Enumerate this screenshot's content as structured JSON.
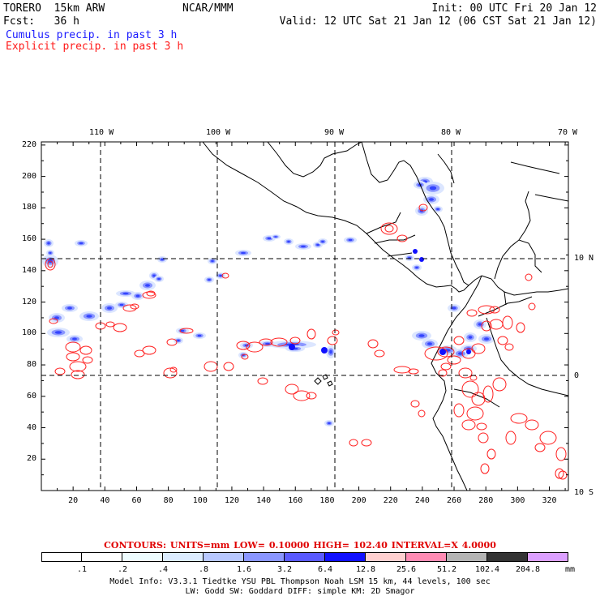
{
  "header": {
    "model": "TORERO  15km ARW",
    "forecast": "Fcst:   36 h",
    "org": "NCAR/MMM",
    "init": "Init: 00 UTC Fri 20 Jan 12",
    "valid": "Valid: 12 UTC Sat 21 Jan 12 (06 CST Sat 21 Jan 12)",
    "cumulus": "Cumulus precip. in past 3 h",
    "explicit": "Explicit precip. in past 3 h"
  },
  "map": {
    "lon_labels": [
      "110 W",
      "100 W",
      "90 W",
      "80 W",
      "70 W"
    ],
    "lat_labels": [
      "10 N",
      "0",
      "10 S"
    ],
    "x_ticks": [
      "20",
      "40",
      "60",
      "80",
      "100",
      "120",
      "140",
      "160",
      "180",
      "200",
      "220",
      "240",
      "260",
      "280",
      "300",
      "320"
    ],
    "y_ticks": [
      "220",
      "200",
      "180",
      "160",
      "140",
      "120",
      "100",
      "80",
      "60",
      "40",
      "20"
    ],
    "colors": {
      "cumulus": "#3344ff",
      "explicit": "#ff2020",
      "coast": "#000000"
    }
  },
  "colorbar": {
    "contours_text": "CONTOURS:  UNITS=mm  LOW= 0.10000     HIGH=  102.40     INTERVAL=X  4.0000",
    "labels": [
      ".1",
      ".2",
      ".4",
      ".8",
      "1.6",
      "3.2",
      "6.4",
      "12.8",
      "25.6",
      "51.2",
      "102.4",
      "204.8"
    ],
    "units": "mm",
    "colors": [
      "#ffffff",
      "#ffffff",
      "#eefcff",
      "#dcecff",
      "#b8c8ff",
      "#8a96ff",
      "#5a5aff",
      "#1010ff",
      "#ffd0d0",
      "#ff8cb4",
      "#b4b4b4",
      "#343434",
      "#dca0ff"
    ]
  },
  "footer": {
    "line1": "Model Info: V3.3.1    Tiedtke YSU PBL  Thompson     Noah LSM  15 km,   44 levels,   100 sec",
    "line2": "LW: Godd SW: Goddard DIFF: simple KM: 2D Smagor"
  }
}
